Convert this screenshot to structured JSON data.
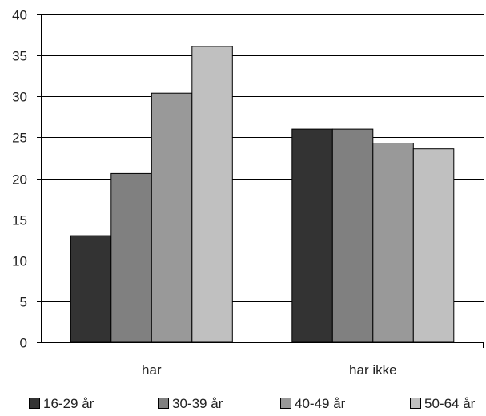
{
  "chart_data": {
    "type": "bar",
    "categories": [
      "har",
      "har ikke"
    ],
    "series": [
      {
        "name": "16-29 år",
        "color": "#333333",
        "values": [
          13.0,
          26.0
        ]
      },
      {
        "name": "30-39 år",
        "color": "#808080",
        "values": [
          20.6,
          26.0
        ]
      },
      {
        "name": "40-49 år",
        "color": "#999999",
        "values": [
          30.4,
          24.3
        ]
      },
      {
        "name": "50-64 år",
        "color": "#c0c0c0",
        "values": [
          36.1,
          23.6
        ]
      }
    ],
    "ylim": [
      0,
      40
    ],
    "yticks": [
      0,
      5,
      10,
      15,
      20,
      25,
      30,
      35,
      40
    ],
    "grid": true,
    "legend_position": "bottom",
    "title": "",
    "xlabel": "",
    "ylabel": ""
  }
}
